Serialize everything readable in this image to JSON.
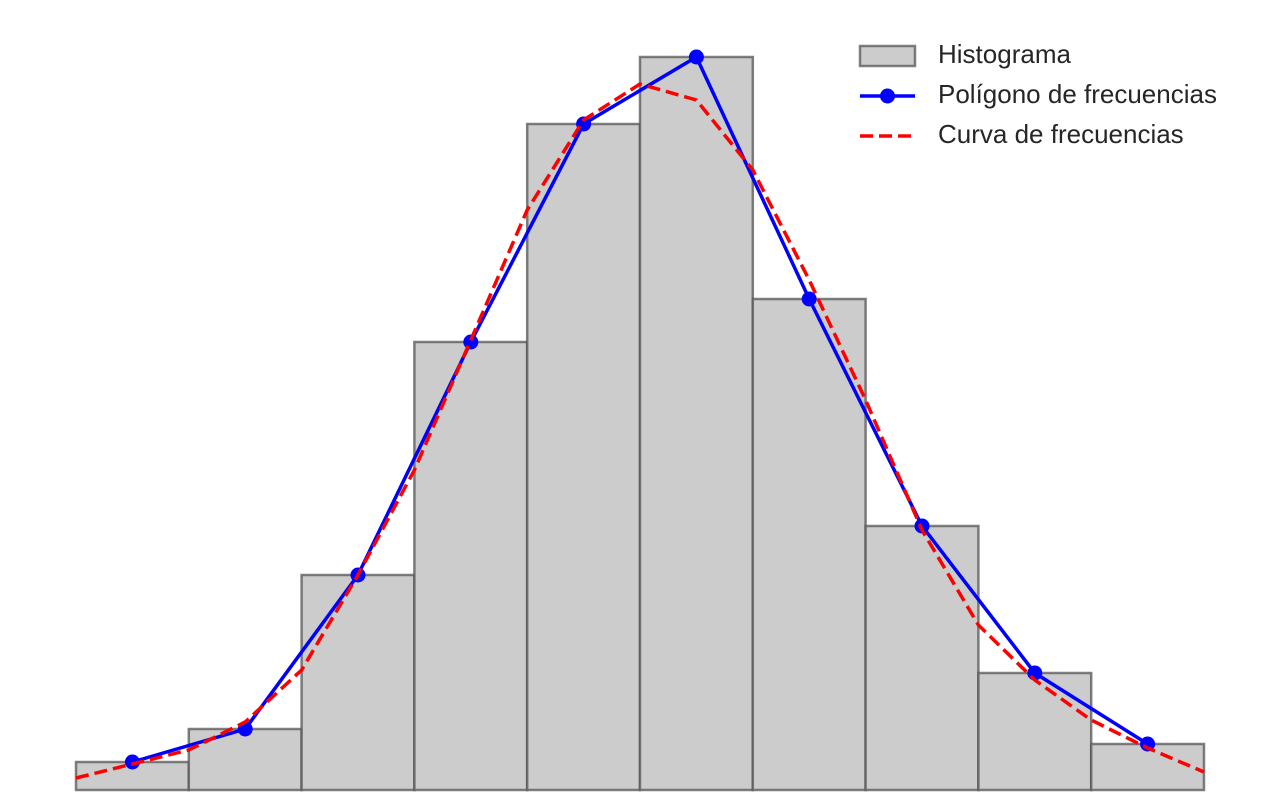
{
  "chart_data": {
    "type": "histogram",
    "xlim": [
      0,
      10
    ],
    "ylim": [
      0,
      760
    ],
    "legend": "upper right",
    "series": [
      {
        "name": "Histograma",
        "type": "histogram",
        "color": "#cccccc",
        "edgecolor": "#555555",
        "bins": [
          0,
          1,
          2,
          3,
          4,
          5,
          6,
          7,
          8,
          9,
          10
        ],
        "values": [
          28,
          61,
          215,
          448,
          666,
          733,
          491,
          264,
          117,
          46
        ]
      },
      {
        "name": "Polígono de frecuencias",
        "type": "line",
        "marker": "o",
        "color": "#0000ff",
        "x": [
          0.5,
          1.5,
          2.5,
          3.5,
          4.5,
          5.5,
          6.5,
          7.5,
          8.5,
          9.5
        ],
        "values": [
          28,
          61,
          215,
          448,
          666,
          733,
          491,
          264,
          117,
          46
        ]
      },
      {
        "name": "Curva de frecuencias",
        "type": "line",
        "linestyle": "dashed",
        "color": "#ff0000",
        "x": [
          0,
          0.5,
          1,
          1.5,
          2,
          2.5,
          3,
          3.5,
          4,
          4.5,
          5,
          5.5,
          6,
          6.5,
          7,
          7.5,
          8,
          8.5,
          9,
          9.5,
          10
        ],
        "values": [
          12,
          26,
          40,
          68,
          120,
          215,
          320,
          450,
          580,
          670,
          706,
          690,
          620,
          510,
          390,
          260,
          165,
          110,
          70,
          42,
          18
        ]
      }
    ]
  }
}
